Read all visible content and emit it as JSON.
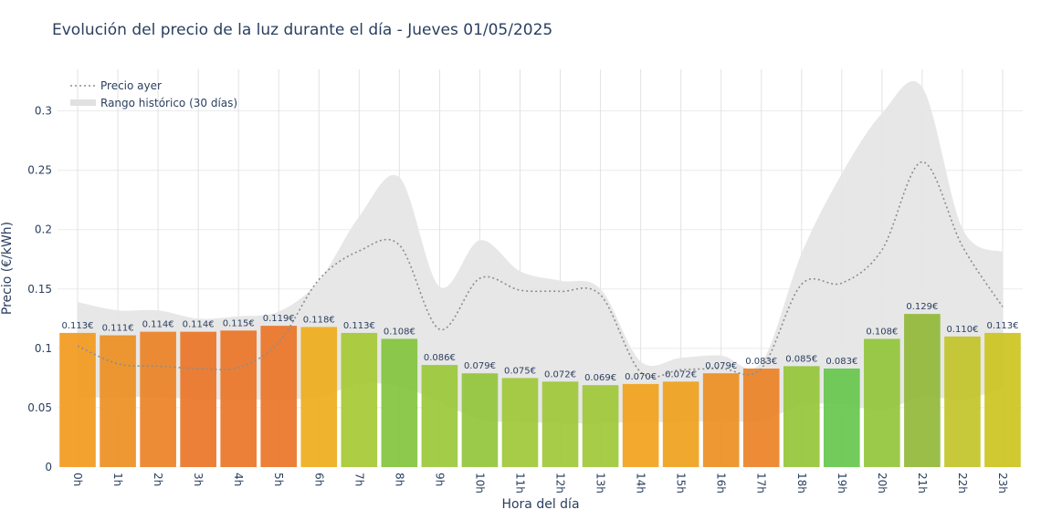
{
  "chart_data": {
    "type": "bar",
    "title": "Evolución del precio de la luz durante el día - Jueves 01/05/2025",
    "xlabel": "Hora del día",
    "ylabel": "Precio (€/kWh)",
    "ylim": [
      0,
      0.335
    ],
    "yticks": [
      0,
      0.05,
      0.1,
      0.15,
      0.2,
      0.25,
      0.3
    ],
    "ytick_labels": [
      "0",
      "0.05",
      "0.1",
      "0.15",
      "0.2",
      "0.25",
      "0.3"
    ],
    "categories": [
      "0h",
      "1h",
      "2h",
      "3h",
      "4h",
      "5h",
      "6h",
      "7h",
      "8h",
      "9h",
      "10h",
      "11h",
      "12h",
      "13h",
      "14h",
      "15h",
      "16h",
      "17h",
      "18h",
      "19h",
      "20h",
      "21h",
      "22h",
      "23h"
    ],
    "series": [
      {
        "type": "bar",
        "values": [
          0.113,
          0.111,
          0.114,
          0.114,
          0.115,
          0.119,
          0.118,
          0.113,
          0.108,
          0.086,
          0.079,
          0.075,
          0.072,
          0.069,
          0.07,
          0.072,
          0.079,
          0.083,
          0.085,
          0.083,
          0.108,
          0.129,
          0.11,
          0.113
        ],
        "labels": [
          "0.113€",
          "0.111€",
          "0.114€",
          "0.114€",
          "0.115€",
          "0.119€",
          "0.118€",
          "0.113€",
          "0.108€",
          "0.086€",
          "0.079€",
          "0.075€",
          "0.072€",
          "0.069€",
          "0.070€",
          "0.072€",
          "0.079€",
          "0.083€",
          "0.085€",
          "0.083€",
          "0.108€",
          "0.129€",
          "0.110€",
          "0.113€"
        ],
        "colors": [
          "#f29a1e",
          "#ec8f22",
          "#ec8225",
          "#ea7527",
          "#ea7527",
          "#ea7527",
          "#efad1c",
          "#a6c935",
          "#82c43d",
          "#9bc83a",
          "#92c63c",
          "#9ec838",
          "#9ec838",
          "#9ec838",
          "#f2a21c",
          "#efa21c",
          "#ec8f22",
          "#ec8226",
          "#96c63a",
          "#66c74c",
          "#92c63c",
          "#92b83a",
          "#c2c42a",
          "#ccc41f"
        ]
      },
      {
        "name": "Precio ayer",
        "type": "line",
        "values": [
          0.102,
          0.087,
          0.085,
          0.083,
          0.084,
          0.105,
          0.158,
          0.182,
          0.187,
          0.116,
          0.159,
          0.149,
          0.148,
          0.145,
          0.08,
          0.082,
          0.083,
          0.083,
          0.154,
          0.155,
          0.183,
          0.257,
          0.186,
          0.135
        ],
        "color": "#8c8c8c"
      },
      {
        "name": "Rango histórico (30 días)",
        "type": "area",
        "upper": [
          0.139,
          0.132,
          0.132,
          0.125,
          0.127,
          0.131,
          0.157,
          0.211,
          0.244,
          0.152,
          0.191,
          0.165,
          0.157,
          0.15,
          0.089,
          0.092,
          0.094,
          0.088,
          0.18,
          0.247,
          0.298,
          0.32,
          0.201,
          0.181
        ],
        "lower": [
          0.058,
          0.059,
          0.059,
          0.057,
          0.057,
          0.057,
          0.059,
          0.07,
          0.068,
          0.055,
          0.04,
          0.038,
          0.037,
          0.037,
          0.038,
          0.038,
          0.039,
          0.039,
          0.052,
          0.053,
          0.048,
          0.059,
          0.057,
          0.066
        ],
        "color": "#e6e6e6"
      }
    ],
    "legend": {
      "position": "top-left",
      "items": [
        {
          "name": "Precio ayer",
          "style": "dotted-line"
        },
        {
          "name": "Rango histórico (30 días)",
          "style": "band"
        }
      ]
    },
    "grid": true
  }
}
